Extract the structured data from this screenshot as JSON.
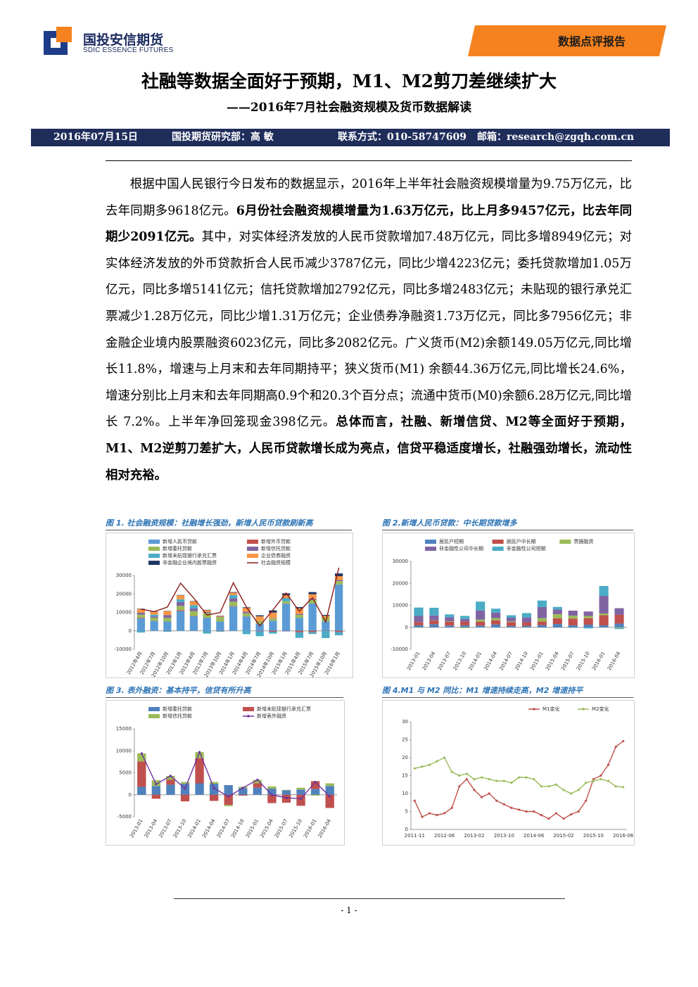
{
  "header": {
    "logo_cn": "国投安信期货",
    "logo_en": "SDIC ESSENCE FUTURES",
    "tag": "数据点评报告"
  },
  "title": "社融等数据全面好于预期，M1、M2剪刀差继续扩大",
  "subtitle": "——2016年7月社会融资规模及货币数据解读",
  "info": {
    "date": "2016年07月15日",
    "author": "国投期货研究部：高 敏",
    "contact": "联系方式：010-58747609",
    "email": "邮箱：research@zgqh.com.cn"
  },
  "body": [
    {
      "text": "根据中国人民银行今日发布的数据显示，2016年上半年社会融资规模增量为9.75万亿元，比去年同期多9618亿元。",
      "bold": false
    },
    {
      "text": "6月份社会融资规模增量为1.63万亿元，比上月多9457亿元，比去年同期少2091亿元。",
      "bold": true
    },
    {
      "text": "其中，对实体经济发放的人民币贷款增加7.48万亿元，同比多增8949亿元；对实体经济发放的外币贷款折合人民币减少3787亿元，同比少增4223亿元；委托贷款增加1.05万亿元，同比多增5141亿元；信托贷款增加2792亿元，同比多增2483亿元；未贴现的银行承兑汇票减少1.28万亿元，同比少增1.31万亿元；企业债券净融资1.73万亿元，同比多7956亿元；非金融企业境内股票融资6023亿元，同比多2082亿元。广义货币(M2)余额149.05万亿元,同比增长11.8%，增速与上月末和去年同期持平；狭义货币(M1) 余额44.36万亿元,同比增长24.6%，增速分别比上月末和去年同期高0.9个和20.3个百分点；流通中货币(M0)余额6.28万亿元,同比增长 7.2%。上半年净回笼现金398亿元。",
      "bold": false
    },
    {
      "text": "总体而言，社融、新增信贷、M2等全面好于预期，M1、M2逆剪刀差扩大，人民币贷款增长成为亮点，信贷平稳适度增长，社融强劲增长，流动性相对充裕。",
      "bold": true
    }
  ],
  "chart_data": [
    {
      "type": "bar",
      "stacked": true,
      "grid": false,
      "title": "图 1. 社会融资规模：社融增长强劲，新增人民币贷款刷新高",
      "categories": [
        "2012年4月",
        "2012年7月",
        "2012年10月",
        "2013年1月",
        "2013年4月",
        "2013年7月",
        "2013年10月",
        "2014年1月",
        "2014年4月",
        "2014年7月",
        "2014年10月",
        "2015年1月",
        "2015年4月",
        "2015年7月",
        "2015年10月",
        "2016年1月"
      ],
      "ylim": [
        -10000,
        30000
      ],
      "yticks": [
        -10000,
        0,
        10000,
        20000,
        30000
      ],
      "series": [
        {
          "name": "新增人民币贷款",
          "color": "#5b9bd5",
          "type": "bar",
          "values": [
            6818,
            5401,
            5052,
            10721,
            7929,
            6999,
            5061,
            13200,
            7747,
            3852,
            5483,
            14708,
            7079,
            14800,
            5136,
            25100
          ]
        },
        {
          "name": "新增外币贷款",
          "color": "#c0504d",
          "type": "bar",
          "values": [
            300,
            100,
            -100,
            500,
            200,
            100,
            -200,
            300,
            100,
            -100,
            -500,
            100,
            -800,
            -700,
            -100,
            -700
          ]
        },
        {
          "name": "新增委托贷款",
          "color": "#9bbb59",
          "type": "bar",
          "values": [
            1700,
            1600,
            2000,
            2300,
            2500,
            2600,
            2400,
            2300,
            1700,
            1500,
            1200,
            1200,
            1600,
            1900,
            2200,
            1800
          ]
        },
        {
          "name": "新增信托贷款",
          "color": "#8064a2",
          "type": "bar",
          "values": [
            1000,
            700,
            1500,
            2000,
            1500,
            500,
            300,
            1800,
            800,
            -300,
            200,
            -300,
            500,
            600,
            -100,
            600
          ]
        },
        {
          "name": "新增未贴现银行承兑汇票",
          "color": "#4bacc6",
          "type": "bar",
          "values": [
            -900,
            1000,
            -400,
            1600,
            1800,
            -1500,
            -300,
            1800,
            -1800,
            -2500,
            -1000,
            1800,
            -3000,
            -1000,
            -3700,
            -1700
          ]
        },
        {
          "name": "企业债券融资",
          "color": "#f79646",
          "type": "bar",
          "values": [
            2000,
            1500,
            2200,
            2100,
            2000,
            1000,
            400,
            1300,
            2000,
            2500,
            3000,
            1500,
            3000,
            2500,
            800,
            2100
          ]
        },
        {
          "name": "非金融企业境内股票融资",
          "color": "#1f3864",
          "type": "bar",
          "values": [
            200,
            200,
            100,
            200,
            200,
            200,
            100,
            300,
            400,
            600,
            1200,
            1000,
            700,
            1200,
            500,
            1500
          ]
        },
        {
          "name": "社会融资规模",
          "color": "#8b1a1a",
          "type": "line",
          "values": [
            11800,
            10400,
            12900,
            25800,
            17700,
            8600,
            9900,
            26000,
            12800,
            2700,
            11300,
            20500,
            10600,
            18000,
            4800,
            34200
          ]
        }
      ]
    },
    {
      "type": "bar",
      "stacked": true,
      "grid": false,
      "title": "图 2.新增人民币贷款：中长期贷款增多",
      "categories": [
        "2013-01",
        "2013-04",
        "2013-07",
        "2013-10",
        "2014-01",
        "2014-04",
        "2014-07",
        "2014-10",
        "2015-01",
        "2015-04",
        "2015-07",
        "2015-10",
        "2016-01",
        "2016-04"
      ],
      "ylim": [
        -10000,
        30000
      ],
      "yticks": [
        -10000,
        0,
        10000,
        20000,
        30000
      ],
      "series": [
        {
          "name": "居民户短期",
          "color": "#4f81bd",
          "type": "bar",
          "values": [
            900,
            1400,
            800,
            900,
            800,
            1300,
            600,
            700,
            1000,
            1500,
            900,
            1200,
            900,
            1700
          ]
        },
        {
          "name": "居民户中长期",
          "color": "#c0504d",
          "type": "bar",
          "values": [
            1500,
            1700,
            1800,
            1700,
            1800,
            1900,
            1800,
            1600,
            1700,
            2600,
            3100,
            3000,
            4600,
            4000
          ]
        },
        {
          "name": "票据融资",
          "color": "#9bbb59",
          "type": "bar",
          "values": [
            -100,
            100,
            200,
            -300,
            900,
            1000,
            300,
            -100,
            1500,
            1900,
            1300,
            1000,
            800,
            -300
          ]
        },
        {
          "name": "非金融性公司中长期",
          "color": "#8064a2",
          "type": "bar",
          "values": [
            2800,
            2200,
            1800,
            1200,
            4200,
            2500,
            1700,
            2200,
            5000,
            2100,
            2300,
            2000,
            8000,
            3000
          ]
        },
        {
          "name": "非金融性公司短期",
          "color": "#4bacc6",
          "type": "bar",
          "values": [
            3800,
            3500,
            1300,
            1400,
            4000,
            1800,
            1100,
            2000,
            3000,
            1200,
            -200,
            -500,
            4500,
            -500
          ]
        }
      ]
    },
    {
      "type": "bar",
      "stacked": true,
      "grid": false,
      "title": "图 3. 表外融资：基本持平，信贷有所升高",
      "categories": [
        "2013-01",
        "2013-04",
        "2013-07",
        "2013-10",
        "2014-01",
        "2014-04",
        "2014-07",
        "2014-10",
        "2015-01",
        "2015-04",
        "2015-07",
        "2015-10",
        "2016-01",
        "2016-04"
      ],
      "ylim": [
        -5000,
        15000
      ],
      "yticks": [
        -5000,
        0,
        5000,
        10000,
        15000
      ],
      "series": [
        {
          "name": "新增委托贷款",
          "color": "#4f81bd",
          "type": "bar",
          "values": [
            1800,
            2000,
            2300,
            2500,
            2600,
            2500,
            2200,
            1500,
            1600,
            1400,
            1000,
            1200,
            1300,
            2000
          ]
        },
        {
          "name": "新增未贴现银行承兑汇票",
          "color": "#c0504d",
          "type": "bar",
          "values": [
            5800,
            -900,
            1100,
            -1500,
            5700,
            -1400,
            -2300,
            -200,
            1000,
            -1900,
            -1800,
            -2500,
            1800,
            -3000
          ]
        },
        {
          "name": "新增信托贷款",
          "color": "#9bbb59",
          "type": "bar",
          "values": [
            1800,
            1300,
            900,
            400,
            1400,
            400,
            -300,
            300,
            800,
            500,
            100,
            400,
            -200,
            600
          ]
        },
        {
          "name": "新增表外融资",
          "color": "#7030a0",
          "type": "line",
          "markers": true,
          "values": [
            9400,
            2400,
            4300,
            1400,
            9700,
            1500,
            -400,
            1600,
            3400,
            0,
            -700,
            -900,
            2900,
            -400
          ]
        }
      ]
    },
    {
      "type": "line",
      "grid": false,
      "title": "图 4.M1 与 M2 同比：M1 增速持续走高，M2 增速持平",
      "categories": [
        "2011-11",
        null,
        null,
        null,
        "2012-06",
        null,
        null,
        null,
        "2013-02",
        null,
        null,
        null,
        "2013-10",
        null,
        null,
        null,
        "2014-06",
        null,
        null,
        null,
        "2015-02",
        null,
        null,
        null,
        "2015-10",
        null,
        null,
        null,
        "2016-06"
      ],
      "ylim": [
        0,
        30
      ],
      "yticks": [
        0,
        5,
        10,
        15,
        20,
        25,
        30
      ],
      "series": [
        {
          "name": "M1变化",
          "color": "#c0504d",
          "type": "line",
          "markers": true,
          "values": [
            8,
            3.5,
            4.5,
            4,
            4.5,
            6,
            12,
            14,
            11,
            9,
            10,
            8,
            7,
            6,
            5.5,
            5,
            5,
            4,
            3,
            4.5,
            3,
            4.2,
            5,
            8,
            14,
            15,
            18,
            23,
            24.6
          ]
        },
        {
          "name": "M2变化",
          "color": "#9bbb59",
          "type": "line",
          "markers": true,
          "values": [
            17,
            17.5,
            18,
            19,
            20,
            16,
            15,
            15.5,
            14,
            14.5,
            14,
            13.5,
            13.5,
            13,
            14.5,
            14.5,
            14,
            12,
            12,
            12.5,
            11,
            10,
            11,
            13,
            13.5,
            14,
            13.5,
            12,
            11.8
          ]
        }
      ]
    }
  ],
  "footer": {
    "page": "- 1 -"
  }
}
